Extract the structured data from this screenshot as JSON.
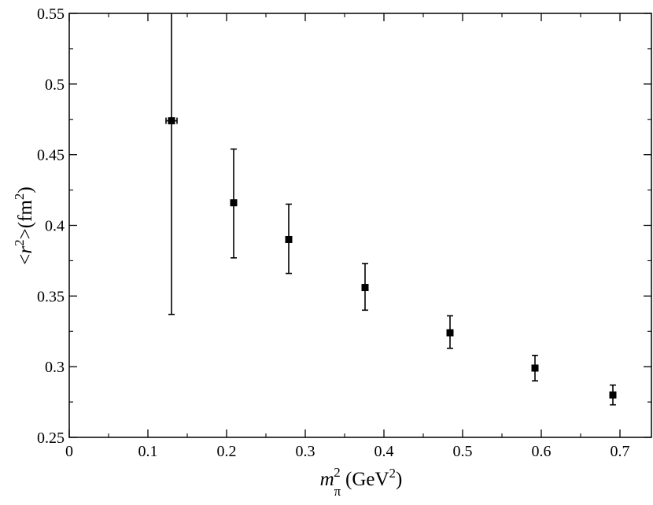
{
  "chart_data": {
    "type": "scatter",
    "title": "",
    "xlabel": {
      "m": "m",
      "sub": "π",
      "sup": "2",
      "rest": " (GeV",
      "rest_sup": "2",
      "close": ")"
    },
    "ylabel": {
      "open": "<",
      "r": "r",
      "sup": "2",
      "mid": ">(fm",
      "mid_sup": "2",
      "close": ")"
    },
    "xlim": [
      0,
      0.74
    ],
    "ylim": [
      0.25,
      0.55
    ],
    "x_ticks": [
      "0",
      "0.1",
      "0.2",
      "0.3",
      "0.4",
      "0.5",
      "0.6",
      "0.7"
    ],
    "y_ticks": [
      "0.25",
      "0.3",
      "0.35",
      "0.4",
      "0.45",
      "0.5",
      "0.55"
    ],
    "grid": false,
    "legend": "none",
    "marker_color": "#000000",
    "points": [
      {
        "x": 0.13,
        "y": 0.474,
        "y_low": 0.337,
        "y_high": 0.55,
        "x_err": 0.007
      },
      {
        "x": 0.209,
        "y": 0.416,
        "y_low": 0.377,
        "y_high": 0.454
      },
      {
        "x": 0.279,
        "y": 0.39,
        "y_low": 0.366,
        "y_high": 0.415
      },
      {
        "x": 0.376,
        "y": 0.356,
        "y_low": 0.34,
        "y_high": 0.373
      },
      {
        "x": 0.484,
        "y": 0.324,
        "y_low": 0.313,
        "y_high": 0.336
      },
      {
        "x": 0.592,
        "y": 0.299,
        "y_low": 0.29,
        "y_high": 0.308
      },
      {
        "x": 0.691,
        "y": 0.28,
        "y_low": 0.273,
        "y_high": 0.287
      }
    ]
  }
}
